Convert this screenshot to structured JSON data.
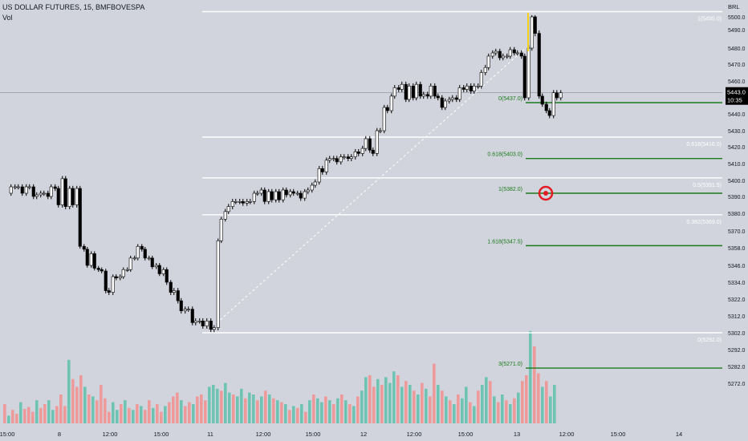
{
  "header": {
    "symbol_line": "US DOLLAR FUTURES, 15, BMFBOVESPA",
    "volume_label": "Vol"
  },
  "price_axis": {
    "currency": "BRL",
    "current_price": "5443.0",
    "countdown": "10:35",
    "ticks": [
      "5500.0",
      "5490.0",
      "5480.0",
      "5470.0",
      "5460.0",
      "5450.0",
      "5440.0",
      "5430.0",
      "5420.0",
      "5410.0",
      "5400.0",
      "5390.0",
      "5380.0",
      "5370.0",
      "5358.0",
      "5346.0",
      "5334.0",
      "5322.0",
      "5312.0",
      "5302.0",
      "5292.0",
      "5282.0",
      "5272.0"
    ]
  },
  "time_axis": {
    "labels": [
      "15:00",
      "8",
      "12:00",
      "15:00",
      "11",
      "12:00",
      "15:00",
      "12",
      "12:00",
      "15:00",
      "13",
      "12:00",
      "15:00",
      "14"
    ]
  },
  "fib_white": [
    "1(5495.0)",
    "0.618(5416.0)",
    "0.5(5391.5)",
    "0.382(5369.0)",
    "0(5292.0)"
  ],
  "fib_green": [
    "0(5437.0)",
    "0.618(5403.0)",
    "1(5382.0)",
    "1.618(5347.5)",
    "3(5271.0)"
  ],
  "colors": {
    "background": "#d1d4dc",
    "bull_candle": "#ffffff",
    "bear_candle": "#000000",
    "fib_white_line": "#ffffff",
    "fib_green_line": "#1b7a1b",
    "volume_up": "#6fc3b3",
    "volume_down": "#ef9a9a",
    "target_marker": "#e31b23"
  },
  "icons": {
    "target": "target-icon"
  },
  "chart_data": {
    "type": "candlestick",
    "y_scale": {
      "tick_values": [
        5500,
        5490,
        5480,
        5470,
        5460,
        5450,
        5440,
        5430,
        5420,
        5410,
        5400,
        5390,
        5380,
        5370,
        5358,
        5346,
        5334,
        5322,
        5312,
        5302,
        5292,
        5282,
        5272
      ],
      "range": [
        5266,
        5506
      ]
    },
    "grid": false,
    "path_points": [
      [
        0,
        5382
      ],
      [
        8,
        5386
      ],
      [
        13,
        5386
      ],
      [
        17,
        5386
      ],
      [
        22,
        5382
      ],
      [
        27,
        5386
      ],
      [
        31,
        5386
      ],
      [
        36,
        5380
      ],
      [
        40,
        5381
      ],
      [
        45,
        5382
      ],
      [
        49,
        5382
      ],
      [
        54,
        5380
      ],
      [
        58,
        5386
      ],
      [
        63,
        5385
      ],
      [
        67,
        5375
      ],
      [
        72,
        5391
      ],
      [
        76,
        5374
      ],
      [
        81,
        5385
      ],
      [
        85,
        5375
      ],
      [
        90,
        5385
      ],
      [
        94,
        5347
      ],
      [
        99,
        5345
      ],
      [
        103,
        5334
      ],
      [
        108,
        5342
      ],
      [
        112,
        5332
      ],
      [
        117,
        5331
      ],
      [
        121,
        5330
      ],
      [
        126,
        5317
      ],
      [
        130,
        5316
      ],
      [
        135,
        5326
      ],
      [
        139,
        5325
      ],
      [
        144,
        5326
      ],
      [
        148,
        5331
      ],
      [
        153,
        5331
      ],
      [
        157,
        5339
      ],
      [
        162,
        5339
      ],
      [
        166,
        5347
      ],
      [
        171,
        5345
      ],
      [
        175,
        5339
      ],
      [
        180,
        5339
      ],
      [
        184,
        5333
      ],
      [
        189,
        5334
      ],
      [
        193,
        5328
      ],
      [
        198,
        5331
      ],
      [
        202,
        5322
      ],
      [
        207,
        5316
      ],
      [
        211,
        5317
      ],
      [
        216,
        5311
      ],
      [
        220,
        5305
      ],
      [
        225,
        5306
      ],
      [
        229,
        5306
      ],
      [
        234,
        5298
      ],
      [
        238,
        5299
      ],
      [
        243,
        5299
      ],
      [
        247,
        5296
      ],
      [
        252,
        5299
      ],
      [
        257,
        5294
      ],
      [
        261,
        5295
      ],
      [
        266,
        5351
      ],
      [
        270,
        5366
      ],
      [
        275,
        5371
      ],
      [
        279,
        5374
      ],
      [
        284,
        5377
      ],
      [
        288,
        5377
      ],
      [
        293,
        5377
      ],
      [
        297,
        5376
      ],
      [
        302,
        5377
      ],
      [
        306,
        5377
      ],
      [
        311,
        5382
      ],
      [
        315,
        5382
      ],
      [
        320,
        5384
      ],
      [
        324,
        5377
      ],
      [
        329,
        5383
      ],
      [
        333,
        5378
      ],
      [
        338,
        5383
      ],
      [
        342,
        5378
      ],
      [
        347,
        5384
      ],
      [
        351,
        5381
      ],
      [
        356,
        5383
      ],
      [
        360,
        5382
      ],
      [
        365,
        5382
      ],
      [
        369,
        5379
      ],
      [
        374,
        5383
      ],
      [
        378,
        5384
      ],
      [
        383,
        5387
      ],
      [
        387,
        5389
      ],
      [
        392,
        5397
      ],
      [
        396,
        5395
      ],
      [
        401,
        5402
      ],
      [
        405,
        5403
      ],
      [
        410,
        5403
      ],
      [
        414,
        5401
      ],
      [
        419,
        5404
      ],
      [
        423,
        5404
      ],
      [
        428,
        5403
      ],
      [
        432,
        5404
      ],
      [
        437,
        5407
      ],
      [
        441,
        5406
      ],
      [
        446,
        5409
      ],
      [
        450,
        5415
      ],
      [
        455,
        5408
      ],
      [
        459,
        5406
      ],
      [
        464,
        5420
      ],
      [
        468,
        5420
      ],
      [
        473,
        5434
      ],
      [
        477,
        5432
      ],
      [
        482,
        5441
      ],
      [
        486,
        5446
      ],
      [
        491,
        5445
      ],
      [
        495,
        5448
      ],
      [
        500,
        5439
      ],
      [
        504,
        5447
      ],
      [
        509,
        5440
      ],
      [
        513,
        5448
      ],
      [
        518,
        5441
      ],
      [
        522,
        5442
      ],
      [
        527,
        5441
      ],
      [
        531,
        5447
      ],
      [
        536,
        5441
      ],
      [
        540,
        5440
      ],
      [
        545,
        5434
      ],
      [
        549,
        5438
      ],
      [
        554,
        5439
      ],
      [
        558,
        5440
      ],
      [
        563,
        5439
      ],
      [
        567,
        5446
      ],
      [
        572,
        5445
      ],
      [
        576,
        5447
      ],
      [
        581,
        5444
      ],
      [
        585,
        5447
      ],
      [
        590,
        5447
      ],
      [
        594,
        5455
      ],
      [
        599,
        5458
      ],
      [
        603,
        5465
      ],
      [
        608,
        5467
      ],
      [
        612,
        5468
      ],
      [
        617,
        5464
      ],
      [
        621,
        5465
      ],
      [
        626,
        5465
      ],
      [
        630,
        5469
      ],
      [
        635,
        5467
      ],
      [
        639,
        5467
      ],
      [
        644,
        5465
      ],
      [
        648,
        5440
      ],
      [
        653,
        5470
      ],
      [
        657,
        5490
      ],
      [
        661,
        5478
      ],
      [
        666,
        5441
      ],
      [
        670,
        5436
      ],
      [
        675,
        5432
      ],
      [
        679,
        5429
      ],
      [
        684,
        5443
      ],
      [
        688,
        5440
      ],
      [
        693,
        5443
      ]
    ],
    "volume_scale_max": 100,
    "volumes": [
      {
        "x": 0,
        "v": 20,
        "up": false
      },
      {
        "x": 5,
        "v": 8,
        "up": true
      },
      {
        "x": 10,
        "v": 14,
        "up": false
      },
      {
        "x": 15,
        "v": 10,
        "up": false
      },
      {
        "x": 20,
        "v": 22,
        "up": true
      },
      {
        "x": 25,
        "v": 15,
        "up": false
      },
      {
        "x": 30,
        "v": 17,
        "up": false
      },
      {
        "x": 35,
        "v": 12,
        "up": false
      },
      {
        "x": 40,
        "v": 24,
        "up": true
      },
      {
        "x": 45,
        "v": 16,
        "up": false
      },
      {
        "x": 50,
        "v": 20,
        "up": false
      },
      {
        "x": 55,
        "v": 24,
        "up": true
      },
      {
        "x": 60,
        "v": 14,
        "up": true
      },
      {
        "x": 65,
        "v": 18,
        "up": false
      },
      {
        "x": 70,
        "v": 30,
        "up": false
      },
      {
        "x": 75,
        "v": 18,
        "up": false
      },
      {
        "x": 80,
        "v": 66,
        "up": true
      },
      {
        "x": 85,
        "v": 46,
        "up": false
      },
      {
        "x": 90,
        "v": 38,
        "up": false
      },
      {
        "x": 95,
        "v": 50,
        "up": false
      },
      {
        "x": 100,
        "v": 38,
        "up": true
      },
      {
        "x": 105,
        "v": 30,
        "up": false
      },
      {
        "x": 110,
        "v": 28,
        "up": true
      },
      {
        "x": 115,
        "v": 24,
        "up": false
      },
      {
        "x": 120,
        "v": 40,
        "up": false
      },
      {
        "x": 125,
        "v": 26,
        "up": false
      },
      {
        "x": 130,
        "v": 12,
        "up": false
      },
      {
        "x": 135,
        "v": 22,
        "up": true
      },
      {
        "x": 140,
        "v": 14,
        "up": true
      },
      {
        "x": 145,
        "v": 20,
        "up": false
      },
      {
        "x": 150,
        "v": 24,
        "up": true
      },
      {
        "x": 155,
        "v": 16,
        "up": false
      },
      {
        "x": 160,
        "v": 14,
        "up": true
      },
      {
        "x": 165,
        "v": 20,
        "up": false
      },
      {
        "x": 170,
        "v": 18,
        "up": true
      },
      {
        "x": 175,
        "v": 14,
        "up": false
      },
      {
        "x": 180,
        "v": 24,
        "up": false
      },
      {
        "x": 185,
        "v": 16,
        "up": true
      },
      {
        "x": 190,
        "v": 20,
        "up": false
      },
      {
        "x": 195,
        "v": 12,
        "up": false
      },
      {
        "x": 200,
        "v": 18,
        "up": true
      },
      {
        "x": 205,
        "v": 22,
        "up": false
      },
      {
        "x": 210,
        "v": 28,
        "up": false
      },
      {
        "x": 215,
        "v": 32,
        "up": false
      },
      {
        "x": 220,
        "v": 24,
        "up": true
      },
      {
        "x": 225,
        "v": 18,
        "up": false
      },
      {
        "x": 230,
        "v": 22,
        "up": false
      },
      {
        "x": 235,
        "v": 20,
        "up": true
      },
      {
        "x": 240,
        "v": 28,
        "up": false
      },
      {
        "x": 245,
        "v": 30,
        "up": false
      },
      {
        "x": 250,
        "v": 24,
        "up": false
      },
      {
        "x": 255,
        "v": 38,
        "up": true
      },
      {
        "x": 260,
        "v": 40,
        "up": true
      },
      {
        "x": 265,
        "v": 36,
        "up": true
      },
      {
        "x": 270,
        "v": 34,
        "up": false
      },
      {
        "x": 275,
        "v": 42,
        "up": true
      },
      {
        "x": 280,
        "v": 32,
        "up": true
      },
      {
        "x": 285,
        "v": 30,
        "up": false
      },
      {
        "x": 290,
        "v": 28,
        "up": true
      },
      {
        "x": 295,
        "v": 36,
        "up": true
      },
      {
        "x": 300,
        "v": 26,
        "up": false
      },
      {
        "x": 305,
        "v": 32,
        "up": true
      },
      {
        "x": 310,
        "v": 30,
        "up": true
      },
      {
        "x": 315,
        "v": 24,
        "up": false
      },
      {
        "x": 320,
        "v": 28,
        "up": true
      },
      {
        "x": 325,
        "v": 34,
        "up": false
      },
      {
        "x": 330,
        "v": 30,
        "up": true
      },
      {
        "x": 335,
        "v": 26,
        "up": false
      },
      {
        "x": 340,
        "v": 24,
        "up": true
      },
      {
        "x": 345,
        "v": 22,
        "up": false
      },
      {
        "x": 350,
        "v": 20,
        "up": true
      },
      {
        "x": 355,
        "v": 14,
        "up": false
      },
      {
        "x": 360,
        "v": 18,
        "up": true
      },
      {
        "x": 365,
        "v": 16,
        "up": false
      },
      {
        "x": 370,
        "v": 20,
        "up": true
      },
      {
        "x": 375,
        "v": 12,
        "up": false
      },
      {
        "x": 380,
        "v": 24,
        "up": true
      },
      {
        "x": 385,
        "v": 30,
        "up": false
      },
      {
        "x": 390,
        "v": 26,
        "up": true
      },
      {
        "x": 395,
        "v": 22,
        "up": true
      },
      {
        "x": 400,
        "v": 28,
        "up": false
      },
      {
        "x": 405,
        "v": 24,
        "up": true
      },
      {
        "x": 410,
        "v": 20,
        "up": false
      },
      {
        "x": 415,
        "v": 26,
        "up": true
      },
      {
        "x": 420,
        "v": 30,
        "up": false
      },
      {
        "x": 425,
        "v": 24,
        "up": true
      },
      {
        "x": 430,
        "v": 20,
        "up": false
      },
      {
        "x": 435,
        "v": 18,
        "up": true
      },
      {
        "x": 440,
        "v": 28,
        "up": false
      },
      {
        "x": 445,
        "v": 34,
        "up": true
      },
      {
        "x": 450,
        "v": 48,
        "up": true
      },
      {
        "x": 455,
        "v": 50,
        "up": false
      },
      {
        "x": 460,
        "v": 38,
        "up": false
      },
      {
        "x": 465,
        "v": 46,
        "up": true
      },
      {
        "x": 470,
        "v": 40,
        "up": false
      },
      {
        "x": 475,
        "v": 48,
        "up": true
      },
      {
        "x": 480,
        "v": 42,
        "up": true
      },
      {
        "x": 485,
        "v": 54,
        "up": true
      },
      {
        "x": 490,
        "v": 50,
        "up": false
      },
      {
        "x": 495,
        "v": 38,
        "up": true
      },
      {
        "x": 500,
        "v": 44,
        "up": false
      },
      {
        "x": 505,
        "v": 40,
        "up": true
      },
      {
        "x": 510,
        "v": 34,
        "up": false
      },
      {
        "x": 515,
        "v": 30,
        "up": true
      },
      {
        "x": 520,
        "v": 42,
        "up": false
      },
      {
        "x": 525,
        "v": 36,
        "up": true
      },
      {
        "x": 530,
        "v": 28,
        "up": false
      },
      {
        "x": 535,
        "v": 62,
        "up": false
      },
      {
        "x": 540,
        "v": 40,
        "up": true
      },
      {
        "x": 545,
        "v": 34,
        "up": false
      },
      {
        "x": 550,
        "v": 28,
        "up": true
      },
      {
        "x": 555,
        "v": 24,
        "up": false
      },
      {
        "x": 560,
        "v": 20,
        "up": true
      },
      {
        "x": 565,
        "v": 30,
        "up": false
      },
      {
        "x": 570,
        "v": 26,
        "up": true
      },
      {
        "x": 575,
        "v": 38,
        "up": true
      },
      {
        "x": 580,
        "v": 22,
        "up": false
      },
      {
        "x": 585,
        "v": 18,
        "up": true
      },
      {
        "x": 590,
        "v": 34,
        "up": false
      },
      {
        "x": 595,
        "v": 40,
        "up": true
      },
      {
        "x": 600,
        "v": 48,
        "up": true
      },
      {
        "x": 605,
        "v": 44,
        "up": false
      },
      {
        "x": 610,
        "v": 28,
        "up": true
      },
      {
        "x": 615,
        "v": 22,
        "up": false
      },
      {
        "x": 620,
        "v": 30,
        "up": true
      },
      {
        "x": 625,
        "v": 24,
        "up": false
      },
      {
        "x": 630,
        "v": 20,
        "up": true
      },
      {
        "x": 635,
        "v": 26,
        "up": false
      },
      {
        "x": 640,
        "v": 32,
        "up": true
      },
      {
        "x": 645,
        "v": 44,
        "up": false
      },
      {
        "x": 650,
        "v": 50,
        "up": false
      },
      {
        "x": 655,
        "v": 96,
        "up": true
      },
      {
        "x": 660,
        "v": 80,
        "up": false
      },
      {
        "x": 665,
        "v": 52,
        "up": false
      },
      {
        "x": 670,
        "v": 38,
        "up": true
      },
      {
        "x": 675,
        "v": 44,
        "up": false
      },
      {
        "x": 680,
        "v": 28,
        "up": true
      },
      {
        "x": 685,
        "v": 40,
        "up": true
      }
    ]
  }
}
